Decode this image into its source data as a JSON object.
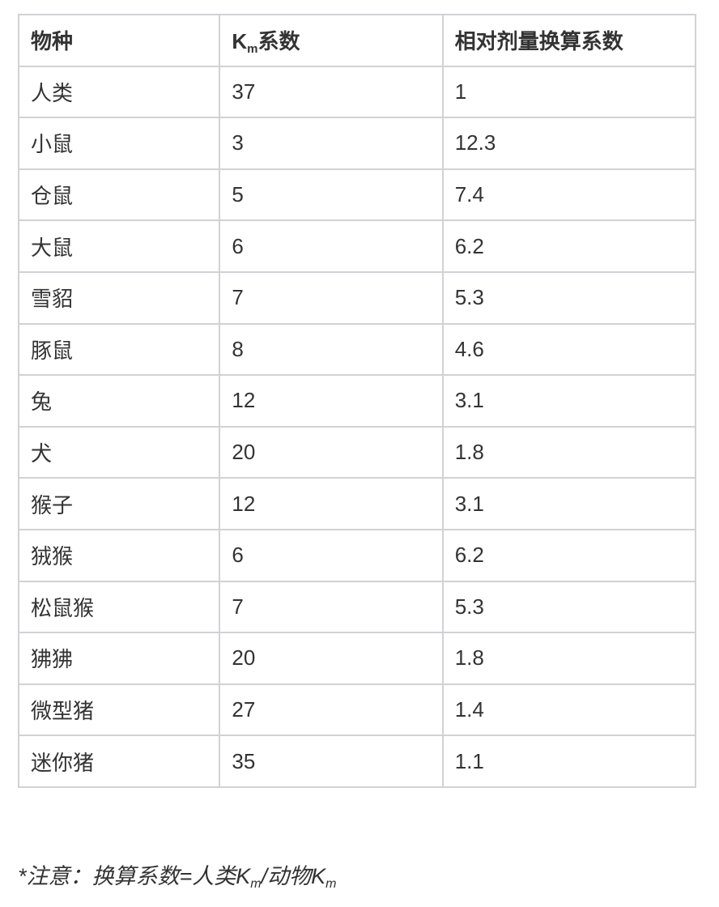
{
  "table": {
    "headers": {
      "species": "物种",
      "km_prefix": "K",
      "km_sub": "m",
      "km_suffix": "系数",
      "factor": "相对剂量换算系数"
    },
    "rows": [
      {
        "species": "人类",
        "km": "37",
        "factor": "1"
      },
      {
        "species": "小鼠",
        "km": "3",
        "factor": "12.3"
      },
      {
        "species": "仓鼠",
        "km": "5",
        "factor": "7.4"
      },
      {
        "species": "大鼠",
        "km": "6",
        "factor": "6.2"
      },
      {
        "species": "雪貂",
        "km": "7",
        "factor": "5.3"
      },
      {
        "species": "豚鼠",
        "km": "8",
        "factor": "4.6"
      },
      {
        "species": "兔",
        "km": "12",
        "factor": "3.1"
      },
      {
        "species": "犬",
        "km": "20",
        "factor": "1.8"
      },
      {
        "species": "猴子",
        "km": "12",
        "factor": "3.1"
      },
      {
        "species": "狨猴",
        "km": "6",
        "factor": "6.2"
      },
      {
        "species": "松鼠猴",
        "km": "7",
        "factor": "5.3"
      },
      {
        "species": "狒狒",
        "km": "20",
        "factor": "1.8"
      },
      {
        "species": "微型猪",
        "km": "27",
        "factor": "1.4"
      },
      {
        "species": "迷你猪",
        "km": "35",
        "factor": "1.1"
      }
    ]
  },
  "note": {
    "part1": "*注意：换算系数=人类K",
    "sub1": "m",
    "part2": "/动物K",
    "sub2": "m"
  }
}
